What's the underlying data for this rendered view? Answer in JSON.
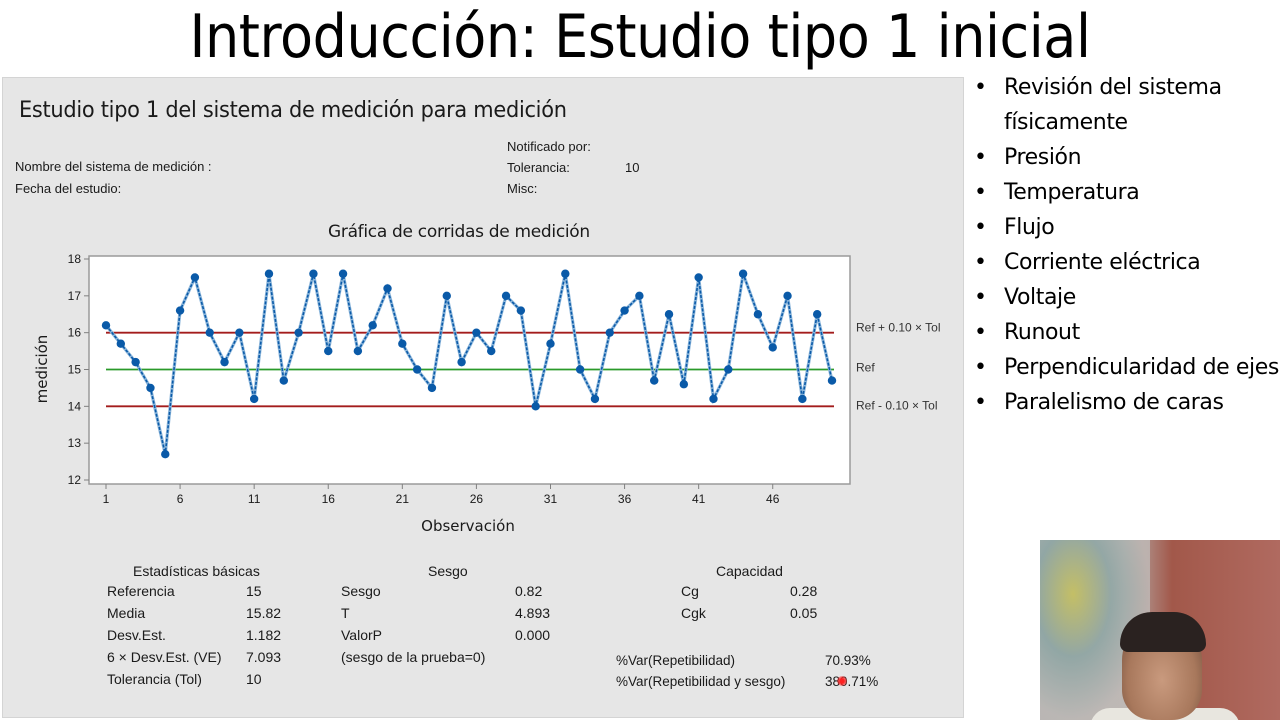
{
  "slide": {
    "title": "Introducción: Estudio tipo 1 inicial"
  },
  "panel": {
    "title": "Estudio tipo 1 del sistema de medición  para medición",
    "meta": {
      "nombre_label": "Nombre del sistema de medición :",
      "fecha_label": "Fecha del estudio:",
      "notificado_label": "Notificado por:",
      "tolerancia_label": "Tolerancia:",
      "tolerancia_value": "10",
      "misc_label": "Misc:"
    },
    "stats": {
      "basic": {
        "header": "Estadísticas básicas",
        "rows": [
          {
            "label": "Referencia",
            "value": "15"
          },
          {
            "label": "Media",
            "value": "15.82"
          },
          {
            "label": "Desv.Est.",
            "value": "1.182"
          },
          {
            "label": "6 × Desv.Est. (VE)",
            "value": "7.093"
          },
          {
            "label": "Tolerancia (Tol)",
            "value": "10"
          }
        ]
      },
      "bias": {
        "header": "Sesgo",
        "rows": [
          {
            "label": "Sesgo",
            "value": "0.82"
          },
          {
            "label": "T",
            "value": "4.893"
          },
          {
            "label": "ValorP",
            "value": "0.000"
          },
          {
            "label": "(sesgo de la prueba=0)",
            "value": ""
          }
        ]
      },
      "capability": {
        "header": "Capacidad",
        "rows": [
          {
            "label": "Cg",
            "value": "0.28"
          },
          {
            "label": "Cgk",
            "value": "0.05"
          }
        ]
      },
      "variation": {
        "rows": [
          {
            "label": "%Var(Repetibilidad)",
            "value": "70.93%"
          },
          {
            "label": "%Var(Repetibilidad y sesgo)",
            "value": "380.71%"
          }
        ]
      }
    }
  },
  "chart_data": {
    "type": "line",
    "title": "Gráfica de corridas de medición",
    "xlabel": "Observación",
    "ylabel": "medición",
    "ylim": [
      12,
      18
    ],
    "xlim": [
      1,
      50
    ],
    "yticks": [
      12,
      13,
      14,
      15,
      16,
      17,
      18
    ],
    "xticks": [
      1,
      6,
      11,
      16,
      21,
      26,
      31,
      36,
      41,
      46
    ],
    "grid": false,
    "x": [
      1,
      2,
      3,
      4,
      5,
      6,
      7,
      8,
      9,
      10,
      11,
      12,
      13,
      14,
      15,
      16,
      17,
      18,
      19,
      20,
      21,
      22,
      23,
      24,
      25,
      26,
      27,
      28,
      29,
      30,
      31,
      32,
      33,
      34,
      35,
      36,
      37,
      38,
      39,
      40,
      41,
      42,
      43,
      44,
      45,
      46,
      47,
      48,
      49,
      50
    ],
    "series": [
      {
        "name": "medición",
        "color": "#0a5aa8",
        "values": [
          16.2,
          15.7,
          15.2,
          14.5,
          12.7,
          16.6,
          17.5,
          16.0,
          15.2,
          16.0,
          14.2,
          17.6,
          14.7,
          16.0,
          17.6,
          15.5,
          17.6,
          15.5,
          16.2,
          17.2,
          15.7,
          15.0,
          14.5,
          17.0,
          15.2,
          16.0,
          15.5,
          17.0,
          16.6,
          14.0,
          15.7,
          17.6,
          15.0,
          14.2,
          16.0,
          16.6,
          17.0,
          14.7,
          16.5,
          14.6,
          17.5,
          14.2,
          15.0,
          17.6,
          16.5,
          15.6,
          17.0,
          14.2,
          16.5,
          14.7
        ]
      }
    ],
    "reference_lines": [
      {
        "label": "Ref + 0.10 × Tol",
        "y": 16,
        "color": "#a31c1c"
      },
      {
        "label": "Ref",
        "y": 15,
        "color": "#2a9a2a"
      },
      {
        "label": "Ref - 0.10 × Tol",
        "y": 14,
        "color": "#a31c1c"
      }
    ]
  },
  "bullets": [
    "Revisión del sistema físicamente",
    "Presión",
    "Temperatura",
    "Flujo",
    "Corriente eléctrica",
    "Voltaje",
    "Runout",
    "Perpendicularidad de ejes",
    "Paralelismo de caras"
  ]
}
